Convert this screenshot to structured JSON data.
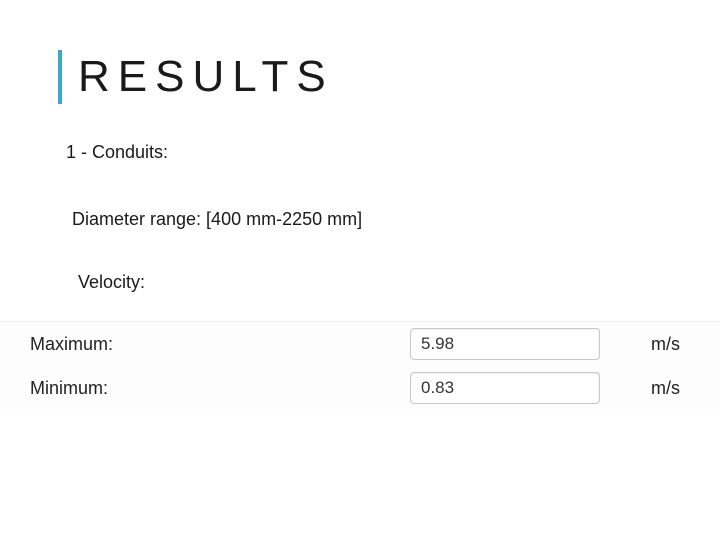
{
  "title": "RESULTS",
  "section": "1 - Conduits:",
  "diameter_line": "Diameter range: [400 mm-2250 mm]",
  "velocity_label": "Velocity:",
  "colors": {
    "accent": "#3aa8c9",
    "text": "#1a1a1a",
    "panel_bg": "#fdfdfd",
    "input_border": "#c8c8c8",
    "input_bg": "#ffffff"
  },
  "velocity": {
    "rows": [
      {
        "label": "Maximum:",
        "value": "5.98",
        "unit": "m/s"
      },
      {
        "label": "Minimum:",
        "value": "0.83",
        "unit": "m/s"
      }
    ]
  }
}
